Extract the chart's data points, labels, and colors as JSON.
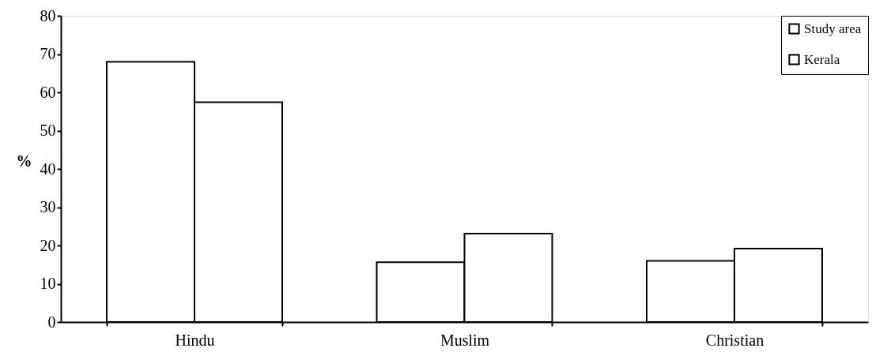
{
  "chart_data": {
    "type": "bar",
    "ylabel": "%",
    "categories": [
      "Hindu",
      "Muslim",
      "Christian"
    ],
    "series": [
      {
        "name": "Study area",
        "color": "#ffffff",
        "values": [
          68,
          15.6,
          16
        ]
      },
      {
        "name": "Kerala",
        "color": "#ffffff",
        "values": [
          57.4,
          23.1,
          19.2
        ]
      }
    ],
    "ylim": [
      0,
      80
    ],
    "yticks": [
      0,
      10,
      20,
      30,
      40,
      50,
      60,
      70,
      80
    ],
    "grid": false,
    "legend": "top right"
  }
}
